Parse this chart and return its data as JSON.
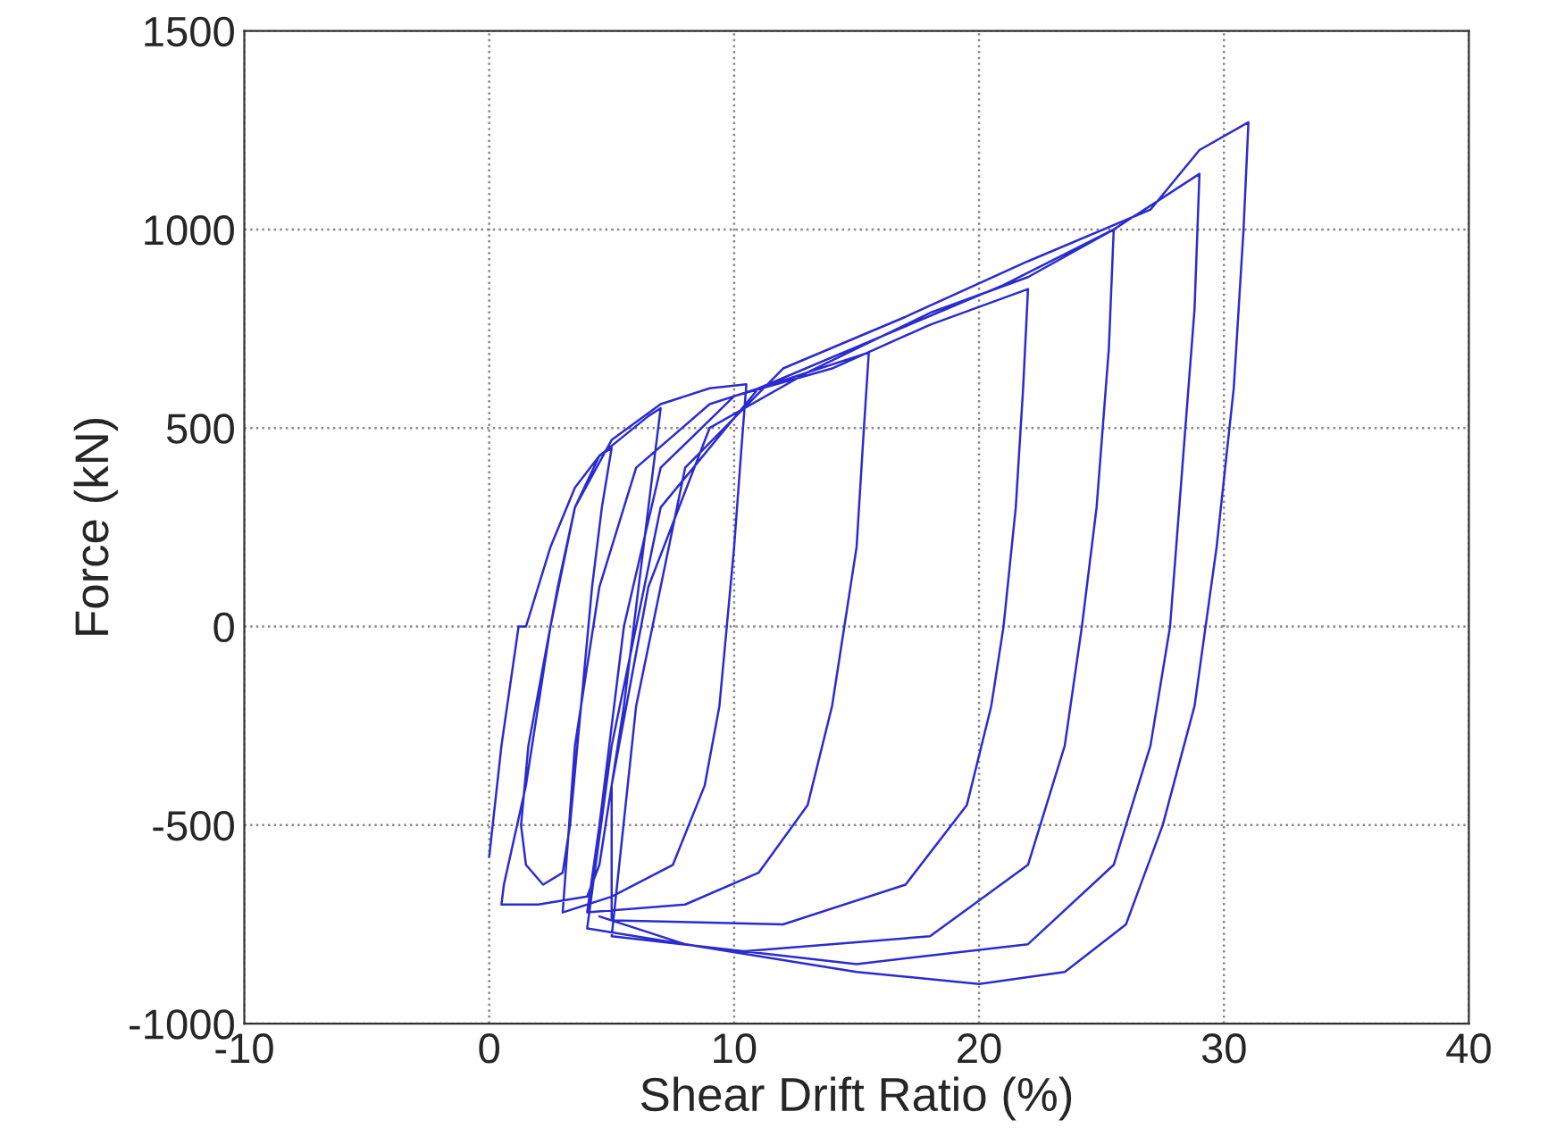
{
  "chart_data": {
    "type": "line",
    "xlabel": "Shear Drift Ratio (%)",
    "ylabel": "Force (kN)",
    "xlim": [
      -10,
      40
    ],
    "ylim": [
      -1000,
      1500
    ],
    "xticks": [
      -10,
      0,
      10,
      20,
      30,
      40
    ],
    "yticks": [
      -1000,
      -500,
      0,
      500,
      1000,
      1500
    ],
    "grid": true,
    "line_style": "solid",
    "marker": "none",
    "series": [
      {
        "color": "#2b2bd0",
        "x": [
          0,
          0.5,
          1.2,
          1.5,
          2.5,
          3.5,
          4.5,
          5,
          4.6,
          4.2,
          3.9,
          3.6,
          3.3,
          3,
          2.2,
          1.5,
          1.3,
          1.6,
          2.2,
          2.8,
          3.5,
          4.5,
          5.5,
          6.5,
          7,
          6.7,
          6.3,
          5.9,
          5.5,
          5,
          4.5,
          4,
          2,
          0.5,
          0.6,
          1.5,
          2.5,
          3.5,
          5,
          7,
          9,
          10.5,
          10.3,
          10,
          9.7,
          9.4,
          8.8,
          7.5,
          5,
          3,
          3.5,
          4.5,
          6,
          9,
          12,
          15.5,
          15.3,
          15,
          14.5,
          14,
          13,
          11,
          8,
          4,
          4.5,
          5.5,
          7,
          10,
          14,
          18,
          22,
          21.8,
          21.5,
          21,
          20.5,
          19.5,
          17,
          12,
          5,
          5,
          6.5,
          9,
          13,
          18,
          22,
          25.5,
          25.3,
          24.8,
          24.2,
          23.5,
          22,
          18,
          10,
          4,
          5,
          7,
          11,
          16,
          21,
          25.5,
          29,
          28.8,
          28.3,
          27.8,
          27,
          25.5,
          22,
          15,
          5,
          6,
          8,
          12,
          17,
          22,
          27,
          29,
          31,
          30.8,
          30.4,
          29.7,
          28.8,
          27.5,
          26,
          23.5,
          20,
          15,
          8,
          4.5
        ],
        "values": [
          -580,
          -300,
          0,
          0,
          200,
          350,
          430,
          450,
          300,
          100,
          -100,
          -300,
          -500,
          -620,
          -650,
          -600,
          -500,
          -300,
          -100,
          100,
          300,
          430,
          480,
          530,
          550,
          400,
          200,
          0,
          -200,
          -400,
          -600,
          -680,
          -700,
          -700,
          -650,
          -400,
          0,
          300,
          470,
          560,
          600,
          610,
          450,
          200,
          0,
          -200,
          -400,
          -600,
          -680,
          -720,
          -300,
          100,
          400,
          560,
          620,
          690,
          500,
          200,
          0,
          -200,
          -450,
          -620,
          -700,
          -720,
          -500,
          0,
          400,
          580,
          650,
          760,
          850,
          600,
          300,
          0,
          -200,
          -450,
          -650,
          -750,
          -740,
          -400,
          100,
          500,
          640,
          790,
          880,
          1000,
          700,
          300,
          0,
          -300,
          -600,
          -780,
          -820,
          -760,
          -300,
          300,
          600,
          730,
          860,
          1000,
          1140,
          800,
          400,
          0,
          -300,
          -600,
          -800,
          -850,
          -780,
          -200,
          400,
          650,
          780,
          920,
          1050,
          1200,
          1270,
          1000,
          600,
          200,
          -200,
          -500,
          -750,
          -870,
          -900,
          -870,
          -800,
          -730
        ]
      }
    ]
  }
}
